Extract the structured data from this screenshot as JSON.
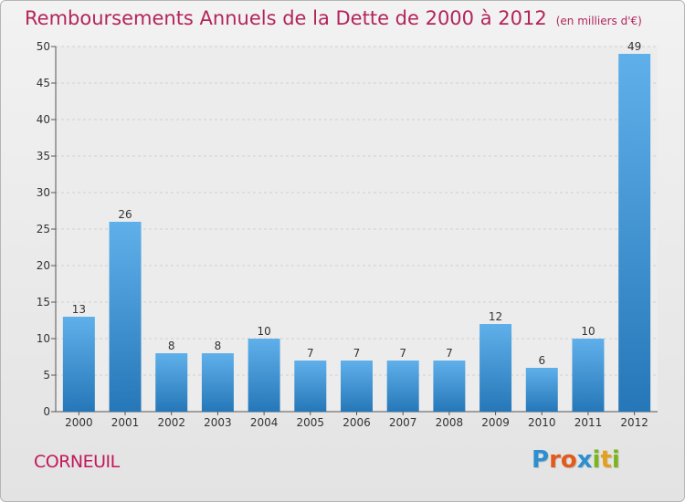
{
  "title": "Remboursements Annuels de la Dette de 2000 à 2012",
  "subtitle": "(en milliers d'€)",
  "commune": "CORNEUIL",
  "logo": {
    "text": "Proxiti",
    "letters": [
      "P",
      "r",
      "o",
      "x",
      "i",
      "t",
      "i"
    ],
    "colors": [
      "#2d8fd0",
      "#e35a1a",
      "#e35a1a",
      "#2d8fd0",
      "#7ab51d",
      "#e3a01a",
      "#7ab51d"
    ]
  },
  "colors": {
    "title": "#b3255b",
    "bar_top": "#5fb0ea",
    "bar_bottom": "#2677b8",
    "axis": "#555555"
  },
  "chart_data": {
    "type": "bar",
    "categories": [
      "2000",
      "2001",
      "2002",
      "2003",
      "2004",
      "2005",
      "2006",
      "2007",
      "2008",
      "2009",
      "2010",
      "2011",
      "2012"
    ],
    "values": [
      13,
      26,
      8,
      8,
      10,
      7,
      7,
      7,
      7,
      12,
      6,
      10,
      49
    ],
    "ylim": [
      0,
      50
    ],
    "yticks": [
      0,
      5,
      10,
      15,
      20,
      25,
      30,
      35,
      40,
      45,
      50
    ],
    "grid": true,
    "legend": "none"
  }
}
